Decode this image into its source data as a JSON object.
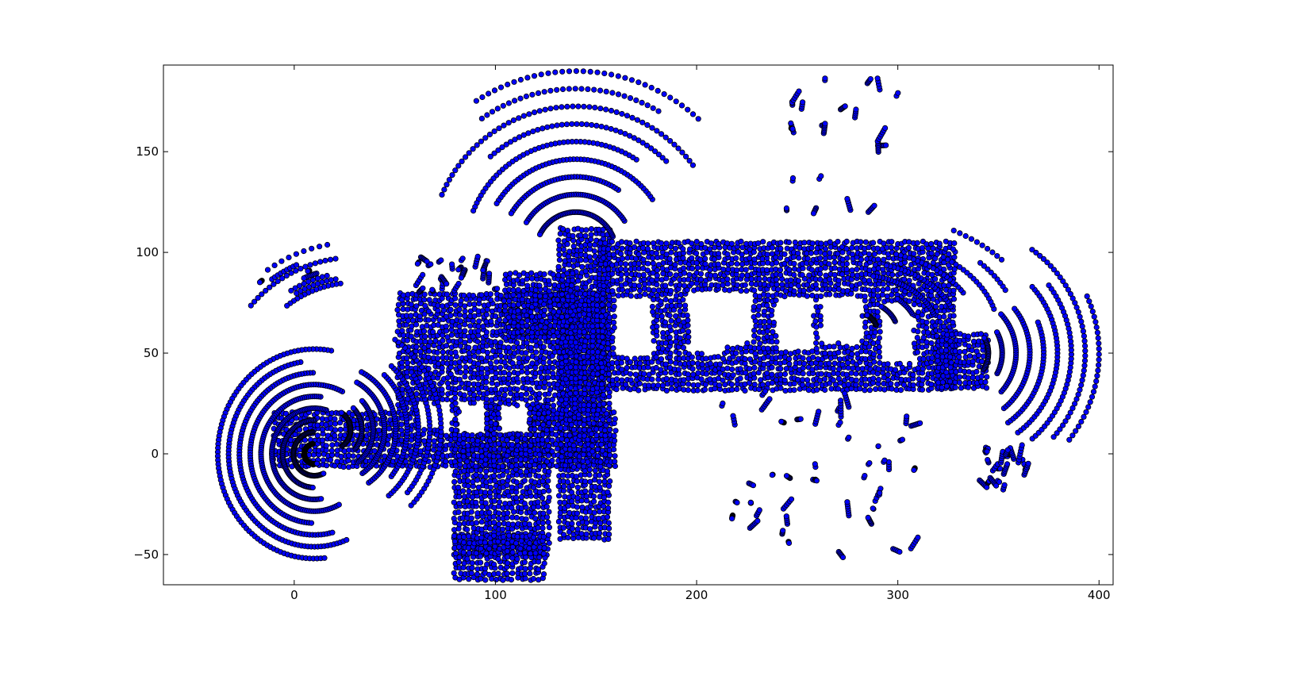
{
  "chart_data": {
    "type": "scatter",
    "title": "",
    "xlabel": "",
    "ylabel": "",
    "xlim": [
      -65,
      407
    ],
    "ylim": [
      -65,
      193
    ],
    "xticks": [
      0,
      100,
      200,
      300,
      400
    ],
    "yticks": [
      -50,
      0,
      50,
      100,
      150
    ],
    "grid": false,
    "legend": "none",
    "marker": "circle",
    "marker_fill": "#0000ff",
    "marker_edge": "#000000",
    "blocks": [
      {
        "x": [
          132,
          158
        ],
        "y": [
          -42,
          112
        ]
      },
      {
        "x": [
          152,
          330
        ],
        "y": [
          32,
          106
        ]
      },
      {
        "x": [
          -10,
          160
        ],
        "y": [
          -6,
          22
        ]
      },
      {
        "x": [
          52,
          155
        ],
        "y": [
          22,
          80
        ]
      },
      {
        "x": [
          80,
          128
        ],
        "y": [
          -50,
          25
        ]
      },
      {
        "x": [
          105,
          140
        ],
        "y": [
          58,
          90
        ]
      },
      {
        "x": [
          320,
          345
        ],
        "y": [
          33,
          60
        ]
      },
      {
        "x": [
          80,
          125
        ],
        "y": [
          -62,
          -40
        ]
      }
    ],
    "holes": [
      {
        "x": [
          160,
          178
        ],
        "y": [
          48,
          78
        ]
      },
      {
        "x": [
          196,
          215
        ],
        "y": [
          50,
          80
        ]
      },
      {
        "x": [
          212,
          228
        ],
        "y": [
          55,
          80
        ]
      },
      {
        "x": [
          240,
          258
        ],
        "y": [
          52,
          78
        ]
      },
      {
        "x": [
          262,
          282
        ],
        "y": [
          55,
          78
        ]
      },
      {
        "x": [
          292,
          308
        ],
        "y": [
          45,
          75
        ]
      },
      {
        "x": [
          62,
          78
        ],
        "y": [
          12,
          25
        ]
      },
      {
        "x": [
          82,
          95
        ],
        "y": [
          10,
          25
        ]
      },
      {
        "x": [
          102,
          116
        ],
        "y": [
          10,
          24
        ]
      }
    ],
    "arcs": [
      {
        "cx": 10,
        "cy": 0,
        "rx": [
          5,
          48
        ],
        "ry": [
          5,
          52
        ],
        "a": [
          60,
          300
        ]
      },
      {
        "cx": 18,
        "cy": 12,
        "rx": [
          10,
          55
        ],
        "ry": [
          10,
          55
        ],
        "a": [
          -70,
          70
        ]
      },
      {
        "cx": 30,
        "cy": 30,
        "rx": [
          55,
          75
        ],
        "ry": [
          55,
          75
        ],
        "a": [
          95,
          140
        ]
      },
      {
        "cx": 140,
        "cy": 100,
        "rx": [
          20,
          90
        ],
        "ry": [
          20,
          90
        ],
        "a": [
          20,
          160
        ]
      },
      {
        "cx": 330,
        "cy": 50,
        "rx": [
          15,
          70
        ],
        "ry": [
          15,
          70
        ],
        "a": [
          -60,
          60
        ]
      },
      {
        "cx": 280,
        "cy": 60,
        "rx": [
          10,
          90
        ],
        "ry": [
          10,
          60
        ],
        "a": [
          10,
          80
        ]
      }
    ],
    "scattered": [
      {
        "x": [
          205,
          260
        ],
        "y": [
          -45,
          30
        ]
      },
      {
        "x": [
          270,
          310
        ],
        "y": [
          -52,
          30
        ]
      },
      {
        "x": [
          340,
          365
        ],
        "y": [
          -18,
          5
        ]
      },
      {
        "x": [
          60,
          100
        ],
        "y": [
          80,
          98
        ]
      },
      {
        "x": [
          240,
          300
        ],
        "y": [
          120,
          190
        ]
      }
    ]
  }
}
